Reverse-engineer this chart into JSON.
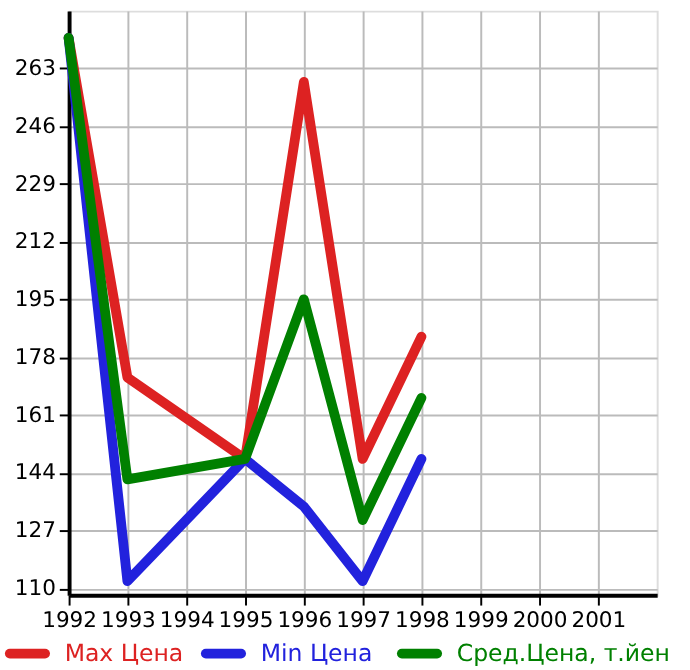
{
  "chart_data": {
    "type": "line",
    "x": [
      1992,
      1993,
      1995,
      1996,
      1997,
      1998
    ],
    "series": [
      {
        "name": "Max Цена",
        "color": "#dd2222",
        "values": [
          272,
          172,
          148,
          259,
          148,
          184
        ]
      },
      {
        "name": "Min Цена",
        "color": "#2222dd",
        "values": [
          272,
          112,
          148,
          134,
          112,
          148
        ]
      },
      {
        "name": "Сред.Цена, т.йен",
        "color": "#008000",
        "values": [
          272,
          142,
          148,
          195,
          130,
          166
        ]
      }
    ],
    "xlim": [
      1992,
      2002
    ],
    "xticks": [
      1992,
      1993,
      1994,
      1995,
      1996,
      1997,
      1998,
      1999,
      2000,
      2001
    ],
    "ylim": [
      108,
      280
    ],
    "yticks": [
      110,
      127,
      144,
      161,
      178,
      195,
      212,
      229,
      246,
      263
    ],
    "grid": true,
    "legend": "bottom",
    "marker": "none",
    "line_style": "solid"
  }
}
